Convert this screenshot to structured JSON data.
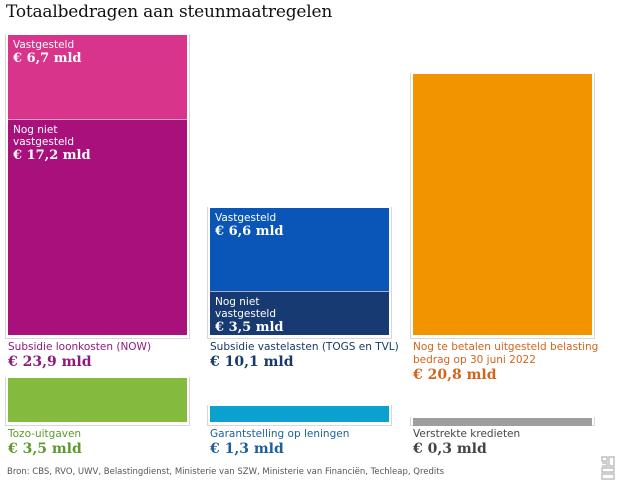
{
  "title": "Totaalbedragen aan steunmaatregelen",
  "source": "Bron: CBS, RVO, UWV, Belastingdienst, Ministerie van SZW, Ministerie van Financiën, Techleap, Qredits",
  "logo_icon": "cbs-logo-icon",
  "chart_data": {
    "type": "bar",
    "title": "Totaalbedragen aan steunmaatregelen",
    "unit": "€ mld",
    "layout": "area-proportional stacked bars in a 3×2 grid",
    "bars": [
      {
        "name": "Subsidie loonkosten (NOW)",
        "total": 23.9,
        "total_label": "€ 23,9 mld",
        "color": "#8f1a7e",
        "segments": [
          {
            "label": "Vastgesteld",
            "value": 6.7,
            "value_label": "€ 6,7 mld",
            "color": "#d9348b"
          },
          {
            "label": "Nog niet\nvastgesteld",
            "value": 17.2,
            "value_label": "€ 17,2 mld",
            "color": "#a8117b"
          }
        ]
      },
      {
        "name": "Subsidie vastelasten (TOGS en TVL)",
        "total": 10.1,
        "total_label": "€ 10,1 mld",
        "color": "#153a6b",
        "segments": [
          {
            "label": "Vastgesteld",
            "value": 6.6,
            "value_label": "€ 6,6 mld",
            "color": "#0a56b8"
          },
          {
            "label": "Nog niet\nvastgesteld",
            "value": 3.5,
            "value_label": "€ 3,5 mld",
            "color": "#173a72"
          }
        ]
      },
      {
        "name": "Nog te betalen uitgesteld belasting\nbedrag op 30 juni 2022",
        "total": 20.8,
        "total_label": "€ 20,8 mld",
        "color": "#d4631b",
        "segments": [
          {
            "label": "",
            "value": 20.8,
            "value_label": "",
            "color": "#f19400"
          }
        ]
      },
      {
        "name": "Tozo-uitgaven",
        "total": 3.5,
        "total_label": "€ 3,5 mld",
        "color": "#5d9a2a",
        "segments": [
          {
            "label": "",
            "value": 3.5,
            "value_label": "",
            "color": "#84bb3f"
          }
        ]
      },
      {
        "name": "Garantstelling op leningen",
        "total": 1.3,
        "total_label": "€ 1,3 mld",
        "color": "#1d5f9c",
        "segments": [
          {
            "label": "",
            "value": 1.3,
            "value_label": "",
            "color": "#0aa1cf"
          }
        ]
      },
      {
        "name": "Verstrekte kredieten",
        "total": 0.3,
        "total_label": "€ 0,3 mld",
        "color": "#444444",
        "segments": [
          {
            "label": "",
            "value": 0.3,
            "value_label": "",
            "color": "#9e9e9e"
          }
        ]
      }
    ]
  }
}
